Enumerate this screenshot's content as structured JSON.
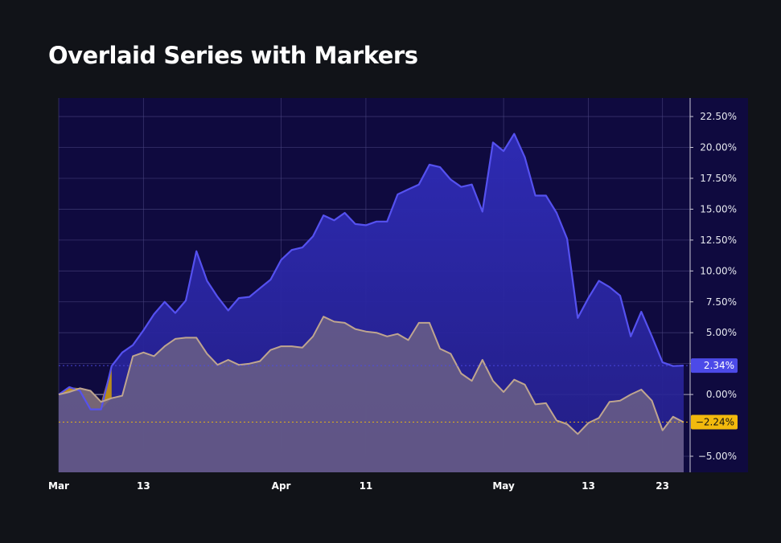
{
  "title": "Overlaid Series with Markers",
  "colors": {
    "page_bg": "#111318",
    "plot_bg": "#0f0a3f",
    "grid": "#4a4580",
    "zero_line": "#b8b4cc",
    "series_a_line": "#5551f0",
    "series_a_fill": "#2f2cb8",
    "series_b_line": "#bfa58f",
    "series_b_fill": "#6b5f86",
    "overlap_fill": "#c99710",
    "badge_a_bg": "#4c4ae8",
    "badge_b_bg": "#f2b90d"
  },
  "chart_data": {
    "type": "area",
    "title": "Overlaid Series with Markers",
    "x_axis": {
      "tick_labels": [
        "Mar",
        "13",
        "Apr",
        "11",
        "May",
        "13",
        "23"
      ],
      "tick_index": [
        0,
        8,
        21,
        29,
        42,
        50,
        57
      ]
    },
    "y_axis": {
      "position": "right",
      "unit": "%",
      "ylim": [
        -6.3,
        24.0
      ],
      "ticks": [
        -5,
        0,
        2.5,
        5,
        7.5,
        10,
        12.5,
        15,
        17.5,
        20,
        22.5
      ],
      "tick_labels": [
        "−5.00%",
        "0.00%",
        "2.50%",
        "5.00%",
        "7.50%",
        "10.00%",
        "12.50%",
        "15.00%",
        "17.50%",
        "20.00%",
        "22.50%"
      ]
    },
    "grid": true,
    "series": [
      {
        "last_value_label": "2.34%",
        "values": [
          0.0,
          0.6,
          0.3,
          -1.2,
          -1.2,
          2.3,
          3.4,
          4.0,
          5.2,
          6.5,
          7.5,
          6.6,
          7.6,
          11.6,
          9.2,
          7.9,
          6.8,
          7.8,
          7.9,
          8.6,
          9.3,
          10.9,
          11.7,
          11.9,
          12.8,
          14.5,
          14.1,
          14.7,
          13.8,
          13.7,
          14.0,
          14.0,
          16.2,
          16.6,
          17.0,
          18.6,
          18.4,
          17.4,
          16.8,
          17.0,
          14.8,
          20.4,
          19.7,
          21.1,
          19.2,
          16.1,
          16.1,
          14.7,
          12.6,
          6.2,
          7.8,
          9.2,
          8.7,
          8.0,
          4.7,
          6.7,
          4.7,
          2.6,
          2.3,
          2.34
        ]
      },
      {
        "last_value_label": "−2.24%",
        "values": [
          0.0,
          0.2,
          0.5,
          0.3,
          -0.6,
          -0.3,
          -0.1,
          3.1,
          3.4,
          3.1,
          3.9,
          4.5,
          4.6,
          4.6,
          3.3,
          2.4,
          2.8,
          2.4,
          2.5,
          2.7,
          3.6,
          3.9,
          3.9,
          3.8,
          4.7,
          6.3,
          5.9,
          5.8,
          5.3,
          5.1,
          5.0,
          4.7,
          4.9,
          4.4,
          5.8,
          5.8,
          3.7,
          3.3,
          1.7,
          1.1,
          2.8,
          1.1,
          0.2,
          1.2,
          0.8,
          -0.8,
          -0.7,
          -2.1,
          -2.4,
          -3.2,
          -2.3,
          -1.9,
          -0.6,
          -0.5,
          0.0,
          0.4,
          -0.5,
          -2.9,
          -1.8,
          -2.24
        ]
      }
    ]
  }
}
